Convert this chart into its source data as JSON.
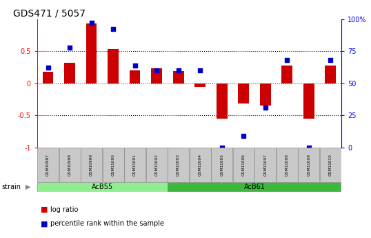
{
  "title": "GDS471 / 5057",
  "samples": [
    "GSM10997",
    "GSM10998",
    "GSM10999",
    "GSM11000",
    "GSM11001",
    "GSM11002",
    "GSM11003",
    "GSM11004",
    "GSM11005",
    "GSM11006",
    "GSM11007",
    "GSM11008",
    "GSM11009",
    "GSM11010"
  ],
  "log_ratio": [
    0.18,
    0.32,
    0.93,
    0.53,
    0.2,
    0.23,
    0.19,
    -0.06,
    -0.55,
    -0.32,
    -0.35,
    0.28,
    -0.55,
    0.28
  ],
  "percentile_raw": [
    62,
    78,
    97,
    92,
    64,
    60,
    60,
    60,
    0,
    9,
    31,
    68,
    0,
    68
  ],
  "bar_color": "#CC0000",
  "dot_color": "#0000CC",
  "ylim": [
    -1.0,
    1.0
  ],
  "background_color": "#ffffff",
  "title_fontsize": 10,
  "bar_width": 0.5,
  "acb55_color": "#90EE90",
  "acb61_color": "#3CB83C",
  "sample_box_color": "#C8C8C8"
}
